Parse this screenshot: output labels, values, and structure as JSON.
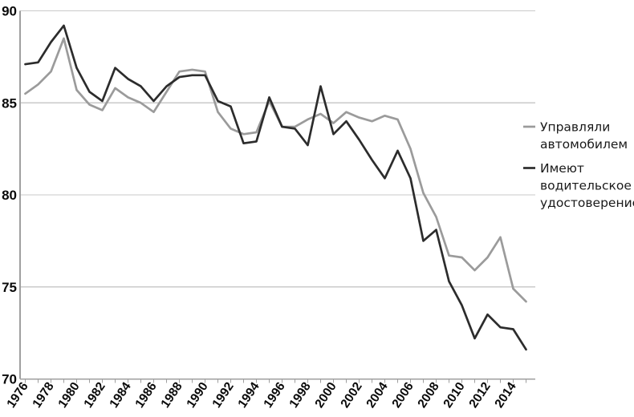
{
  "chart_data": {
    "type": "line",
    "title": "",
    "xlabel": "",
    "ylabel": "",
    "x": [
      1976,
      1977,
      1978,
      1979,
      1980,
      1981,
      1982,
      1983,
      1984,
      1985,
      1986,
      1987,
      1988,
      1989,
      1990,
      1991,
      1992,
      1993,
      1994,
      1995,
      1996,
      1997,
      1998,
      1999,
      2000,
      2001,
      2002,
      2003,
      2004,
      2005,
      2006,
      2007,
      2008,
      2009,
      2010,
      2011,
      2012,
      2013,
      2014,
      2015
    ],
    "series": [
      {
        "id": "drove",
        "name": "Управляли автомобилем",
        "legend_lines": [
          "Управляли",
          "автомобилем"
        ],
        "color": "#9b9b9b",
        "values": [
          85.5,
          86.0,
          86.7,
          88.5,
          85.7,
          84.9,
          84.6,
          85.8,
          85.3,
          85.0,
          84.5,
          85.6,
          86.7,
          86.8,
          86.7,
          84.5,
          83.6,
          83.3,
          83.4,
          85.1,
          83.7,
          83.7,
          84.1,
          84.4,
          83.9,
          84.5,
          84.2,
          84.0,
          84.3,
          84.1,
          82.5,
          80.1,
          78.8,
          76.7,
          76.6,
          75.9,
          76.6,
          77.7,
          74.9,
          74.2
        ]
      },
      {
        "id": "license",
        "name": "Имеют водительское удостоверение",
        "legend_lines": [
          "Имеют",
          "водительское",
          "удостоверение"
        ],
        "color": "#2c2c2c",
        "values": [
          87.1,
          87.2,
          88.3,
          89.2,
          86.9,
          85.6,
          85.1,
          86.9,
          86.3,
          85.9,
          85.1,
          85.9,
          86.4,
          86.5,
          86.5,
          85.1,
          84.8,
          82.8,
          82.9,
          85.3,
          83.7,
          83.6,
          82.7,
          85.9,
          83.3,
          84.0,
          83.0,
          81.9,
          80.9,
          82.4,
          80.9,
          77.5,
          78.1,
          75.3,
          74.0,
          72.2,
          73.5,
          72.8,
          72.7,
          71.6
        ]
      }
    ],
    "ylim": [
      70,
      90
    ],
    "yticks": [
      90,
      85,
      80,
      75,
      70
    ],
    "xticks_labeled": [
      1976,
      1978,
      1980,
      1982,
      1984,
      1986,
      1988,
      1990,
      1992,
      1994,
      1996,
      1998,
      2000,
      2002,
      2004,
      2006,
      2008,
      2010,
      2012,
      2014
    ],
    "grid": "horizontal",
    "legend_position": "right",
    "colors": {
      "grid": "#cacaca",
      "axis": "#9f9f9f",
      "tick": "#9f9f9f",
      "axis_label": "#0a0a0a",
      "legend_text": "#1a1a1a",
      "background": "#ffffff"
    }
  }
}
